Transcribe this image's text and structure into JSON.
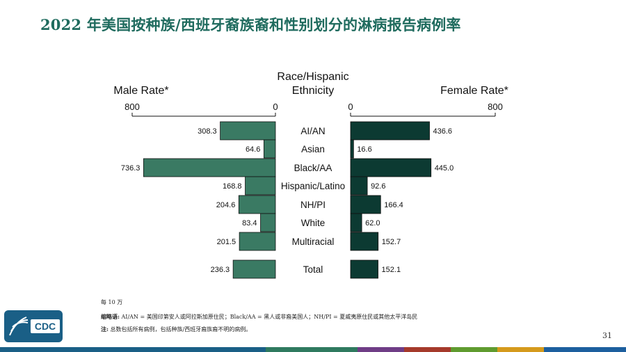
{
  "title": "2022 年美国按种族/西班牙裔族裔和性别划分的淋病报告病例率",
  "colors": {
    "title": "#1f6b5e",
    "male_bar": "#3a7a63",
    "female_bar": "#0c3a32",
    "footer": [
      "#1a5f86",
      "#2f7a5f",
      "#6f3d86",
      "#a53a2b",
      "#5f9b2f",
      "#d59a1c",
      "#1d5f9e"
    ]
  },
  "chart_data": {
    "type": "bar",
    "subtype": "population-pyramid",
    "center_header": "Race/Hispanic Ethnicity",
    "categories": [
      "AI/AN",
      "Asian",
      "Black/AA",
      "Hispanic/Latino",
      "NH/PI",
      "White",
      "Multiracial",
      "Total"
    ],
    "series": [
      {
        "name": "Male Rate*",
        "values": [
          308.3,
          64.6,
          736.3,
          168.8,
          204.6,
          83.4,
          201.5,
          236.3
        ]
      },
      {
        "name": "Female Rate*",
        "values": [
          436.6,
          16.6,
          445.0,
          92.6,
          166.4,
          62.0,
          152.7,
          152.1
        ]
      }
    ],
    "value_labels_male": [
      "308.3",
      "64.6",
      "736.3",
      "168.8",
      "204.6",
      "83.4",
      "201.5",
      "236.3"
    ],
    "value_labels_female": [
      "436.6",
      "16.6",
      "445.0",
      "92.6",
      "166.4",
      "62.0",
      "152.7",
      "152.1"
    ],
    "xlim": [
      0,
      800
    ],
    "tick_labels": [
      "800",
      "0",
      "0",
      "800"
    ],
    "grid": false
  },
  "notes": {
    "unit": "每 10 万",
    "abbr_label": "缩略语:",
    "abbr_text": "AI/AN = 美国印第安人或阿拉斯加原住民；Black/AA = 黑人或非裔美国人；NH/PI = 夏威夷原住民或其他太平洋岛民",
    "note_label": "注:",
    "note_text": "总数包括所有病例，包括种族/西班牙裔族裔不明的病例。"
  },
  "logo": {
    "text": "CDC",
    "icon": "hhs-eagle-icon"
  },
  "page_number": "31"
}
